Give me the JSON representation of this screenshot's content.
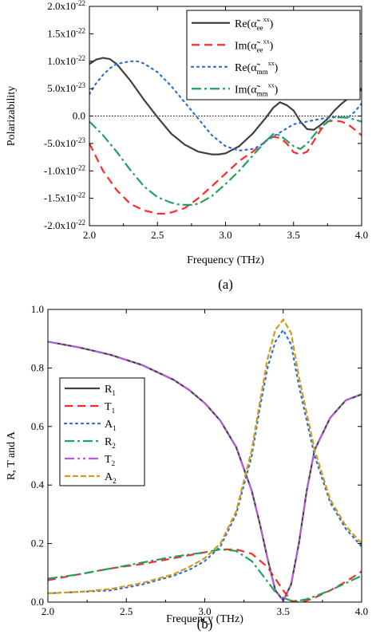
{
  "chart_data": [
    {
      "type": "line",
      "caption": "(a)",
      "xlabel": "Frequency (THz)",
      "ylabel": "Polarizability",
      "xlim": [
        2.0,
        4.0
      ],
      "ylim": [
        -2e-22,
        2e-22
      ],
      "x_ticks": [
        "2.0",
        "2.5",
        "3.0",
        "3.5",
        "4.0"
      ],
      "y_ticks": [
        {
          "base": "2.0x10",
          "exp": "-22"
        },
        {
          "base": "1.5x10",
          "exp": "-22"
        },
        {
          "base": "1.0x10",
          "exp": "-22"
        },
        {
          "base": "5.0x10",
          "exp": "-23"
        },
        {
          "base": "0.0",
          "exp": ""
        },
        {
          "base": "-5.0x10",
          "exp": "-23"
        },
        {
          "base": "-1.0x10",
          "exp": "-22"
        },
        {
          "base": "-1.5x10",
          "exp": "-22"
        },
        {
          "base": "-2.0x10",
          "exp": "-22"
        }
      ],
      "zero_line": true,
      "legend_position": "top-right",
      "series": [
        {
          "name": "Re(α̃ee xx)",
          "legend": {
            "pre": "Re(",
            "sym": "α̃",
            "sub": "ee",
            "sup": "xx",
            "post": ")"
          },
          "color": "#404040",
          "dash": "solid",
          "x": [
            2.0,
            2.05,
            2.1,
            2.15,
            2.2,
            2.3,
            2.4,
            2.5,
            2.6,
            2.7,
            2.8,
            2.9,
            2.95,
            3.0,
            3.1,
            3.2,
            3.3,
            3.35,
            3.4,
            3.45,
            3.5,
            3.55,
            3.6,
            3.65,
            3.7,
            3.75,
            3.8,
            3.85,
            3.9,
            3.95,
            4.0
          ],
          "y": [
            9.5e-23,
            1.03e-22,
            1.06e-22,
            1.04e-22,
            9.5e-23,
            6.5e-23,
            3e-23,
            -2e-24,
            -3.2e-23,
            -5.2e-23,
            -6.5e-23,
            -7e-23,
            -7e-23,
            -6.8e-23,
            -5.5e-23,
            -3.2e-23,
            -2e-24,
            1.5e-23,
            2.5e-23,
            2e-23,
            1e-23,
            -1e-23,
            -2.4e-23,
            -2.5e-23,
            -1.6e-23,
            -5e-24,
            1e-23,
            2.2e-23,
            3.2e-23,
            4e-23,
            4.8e-23
          ]
        },
        {
          "name": "Im(α̃ee xx)",
          "legend": {
            "pre": "Im(",
            "sym": "α̃",
            "sub": "ee",
            "sup": "xx",
            "post": ")"
          },
          "color": "#ff2a2a",
          "dash": "10,6",
          "x": [
            2.0,
            2.05,
            2.1,
            2.2,
            2.3,
            2.4,
            2.5,
            2.55,
            2.6,
            2.7,
            2.8,
            2.9,
            3.0,
            3.1,
            3.2,
            3.3,
            3.35,
            3.4,
            3.45,
            3.5,
            3.55,
            3.6,
            3.65,
            3.7,
            3.75,
            3.8,
            3.85,
            3.9,
            3.95,
            4.0
          ],
          "y": [
            -5e-23,
            -7.5e-23,
            -1e-22,
            -1.35e-22,
            -1.6e-22,
            -1.72e-22,
            -1.78e-22,
            -1.78e-22,
            -1.76e-22,
            -1.68e-22,
            -1.5e-22,
            -1.28e-22,
            -1.05e-22,
            -8.2e-23,
            -6.5e-23,
            -4.5e-23,
            -3.8e-23,
            -4e-23,
            -5e-23,
            -6.6e-23,
            -7e-23,
            -6.5e-23,
            -4.5e-23,
            -2.5e-23,
            -1e-23,
            -8e-24,
            -1e-23,
            -1.5e-23,
            -2.5e-23,
            -3.5e-23
          ]
        },
        {
          "name": "Re(α̃mm xx)",
          "legend": {
            "pre": "Re(",
            "sym": "α̃",
            "sub": "mm",
            "sup": "xx",
            "post": ")"
          },
          "color": "#2a6fd6",
          "dash": "2,5",
          "x": [
            2.0,
            2.05,
            2.1,
            2.15,
            2.2,
            2.3,
            2.35,
            2.4,
            2.5,
            2.6,
            2.7,
            2.8,
            2.9,
            3.0,
            3.1,
            3.2,
            3.25,
            3.3,
            3.4,
            3.5,
            3.6,
            3.7,
            3.8,
            3.9,
            3.95,
            4.0
          ],
          "y": [
            4e-23,
            6e-23,
            7.5e-23,
            8.7e-23,
            9.5e-23,
            1e-22,
            1e-22,
            9.6e-23,
            8e-23,
            5.5e-23,
            2.5e-23,
            -5e-24,
            -3.5e-23,
            -5.5e-23,
            -6.3e-23,
            -6e-23,
            -5.5e-23,
            -4.5e-23,
            -3e-23,
            -1.5e-23,
            -1e-23,
            -5e-24,
            -2e-24,
            -3e-24,
            8e-24,
            2.3e-23
          ]
        },
        {
          "name": "Im(α̃mm xx)",
          "legend": {
            "pre": "Im(",
            "sym": "α̃",
            "sub": "mm",
            "sup": "xx",
            "post": ")"
          },
          "color": "#1fa35c",
          "dash": "12,4,3,4",
          "x": [
            2.0,
            2.1,
            2.2,
            2.3,
            2.4,
            2.5,
            2.6,
            2.65,
            2.7,
            2.75,
            2.8,
            2.9,
            3.0,
            3.1,
            3.2,
            3.3,
            3.35,
            3.4,
            3.45,
            3.5,
            3.55,
            3.6,
            3.7,
            3.8,
            3.9,
            4.0
          ],
          "y": [
            -1e-23,
            -3.5e-23,
            -6.5e-23,
            -9.8e-23,
            -1.28e-22,
            -1.48e-22,
            -1.58e-22,
            -1.61e-22,
            -1.62e-22,
            -1.62e-22,
            -1.6e-22,
            -1.46e-22,
            -1.24e-22,
            -1e-22,
            -7.2e-23,
            -4.5e-23,
            -3.3e-23,
            -3.5e-23,
            -4.5e-23,
            -5.5e-23,
            -6e-23,
            -5e-23,
            -2e-23,
            -2e-24,
            -3e-24,
            -1e-23
          ]
        }
      ]
    },
    {
      "type": "line",
      "caption": "(b)",
      "xlabel": "Frequency (THz)",
      "ylabel": "R, T and A",
      "xlim": [
        2.0,
        4.0
      ],
      "ylim": [
        0.0,
        1.0
      ],
      "x_ticks": [
        "2.0",
        "2.5",
        "3.0",
        "3.5",
        "4.0"
      ],
      "y_ticks": [
        "0.0",
        "0.2",
        "0.4",
        "0.6",
        "0.8",
        "1.0"
      ],
      "legend_position": "middle-left",
      "series": [
        {
          "name": "R1",
          "legend": {
            "pre": "R",
            "sub": "1"
          },
          "color": "#404040",
          "dash": "solid",
          "x": [
            2.0,
            2.2,
            2.4,
            2.6,
            2.8,
            2.9,
            3.0,
            3.1,
            3.2,
            3.3,
            3.35,
            3.4,
            3.45,
            3.5,
            3.55,
            3.6,
            3.65,
            3.7,
            3.8,
            3.9,
            4.0
          ],
          "y": [
            0.89,
            0.87,
            0.845,
            0.81,
            0.76,
            0.725,
            0.68,
            0.62,
            0.53,
            0.38,
            0.27,
            0.15,
            0.04,
            0.005,
            0.06,
            0.2,
            0.38,
            0.52,
            0.63,
            0.69,
            0.71
          ]
        },
        {
          "name": "T1",
          "legend": {
            "pre": "T",
            "sub": "1"
          },
          "color": "#ff2a2a",
          "dash": "10,6",
          "x": [
            2.0,
            2.2,
            2.4,
            2.6,
            2.8,
            3.0,
            3.1,
            3.2,
            3.3,
            3.4,
            3.45,
            3.5,
            3.55,
            3.6,
            3.65,
            3.7,
            3.8,
            3.9,
            4.0
          ],
          "y": [
            0.075,
            0.095,
            0.115,
            0.13,
            0.15,
            0.17,
            0.18,
            0.18,
            0.165,
            0.12,
            0.08,
            0.04,
            0.005,
            0.0,
            0.005,
            0.015,
            0.04,
            0.07,
            0.105
          ]
        },
        {
          "name": "A1",
          "legend": {
            "pre": "A",
            "sub": "1"
          },
          "color": "#2a6fd6",
          "dash": "2,5",
          "x": [
            2.0,
            2.2,
            2.4,
            2.6,
            2.8,
            2.9,
            3.0,
            3.1,
            3.2,
            3.3,
            3.35,
            3.4,
            3.45,
            3.5,
            3.55,
            3.6,
            3.7,
            3.8,
            3.9,
            4.0
          ],
          "y": [
            0.03,
            0.035,
            0.04,
            0.06,
            0.09,
            0.11,
            0.14,
            0.19,
            0.3,
            0.5,
            0.66,
            0.8,
            0.89,
            0.93,
            0.88,
            0.74,
            0.5,
            0.34,
            0.25,
            0.19
          ]
        },
        {
          "name": "R2",
          "legend": {
            "pre": "R",
            "sub": "2"
          },
          "color": "#1fa35c",
          "dash": "12,4,3,4",
          "x": [
            2.0,
            2.2,
            2.4,
            2.6,
            2.8,
            3.0,
            3.1,
            3.2,
            3.3,
            3.35,
            3.4,
            3.45,
            3.5,
            3.55,
            3.6,
            3.65,
            3.7,
            3.8,
            3.9,
            4.0
          ],
          "y": [
            0.08,
            0.095,
            0.115,
            0.135,
            0.155,
            0.17,
            0.18,
            0.175,
            0.14,
            0.105,
            0.07,
            0.035,
            0.015,
            0.005,
            0.005,
            0.01,
            0.02,
            0.04,
            0.065,
            0.09
          ]
        },
        {
          "name": "T2",
          "legend": {
            "pre": "T",
            "sub": "2"
          },
          "color": "#b45cd8",
          "dash": "12,4,3,4,3,4",
          "x": [
            2.0,
            2.2,
            2.4,
            2.6,
            2.8,
            2.9,
            3.0,
            3.1,
            3.2,
            3.3,
            3.35,
            3.4,
            3.45,
            3.5,
            3.55,
            3.6,
            3.65,
            3.7,
            3.8,
            3.9,
            4.0
          ],
          "y": [
            0.89,
            0.87,
            0.845,
            0.81,
            0.76,
            0.725,
            0.68,
            0.62,
            0.53,
            0.38,
            0.27,
            0.15,
            0.04,
            0.005,
            0.06,
            0.2,
            0.38,
            0.52,
            0.63,
            0.69,
            0.71
          ]
        },
        {
          "name": "A2",
          "legend": {
            "pre": "A",
            "sub": "2"
          },
          "color": "#d49a1e",
          "dash": "7,3",
          "x": [
            2.0,
            2.2,
            2.4,
            2.6,
            2.8,
            2.9,
            3.0,
            3.1,
            3.2,
            3.3,
            3.35,
            3.4,
            3.45,
            3.5,
            3.55,
            3.6,
            3.7,
            3.8,
            3.9,
            4.0
          ],
          "y": [
            0.03,
            0.035,
            0.045,
            0.065,
            0.095,
            0.12,
            0.15,
            0.2,
            0.31,
            0.52,
            0.68,
            0.83,
            0.93,
            0.965,
            0.92,
            0.77,
            0.52,
            0.35,
            0.26,
            0.2
          ]
        }
      ]
    }
  ]
}
